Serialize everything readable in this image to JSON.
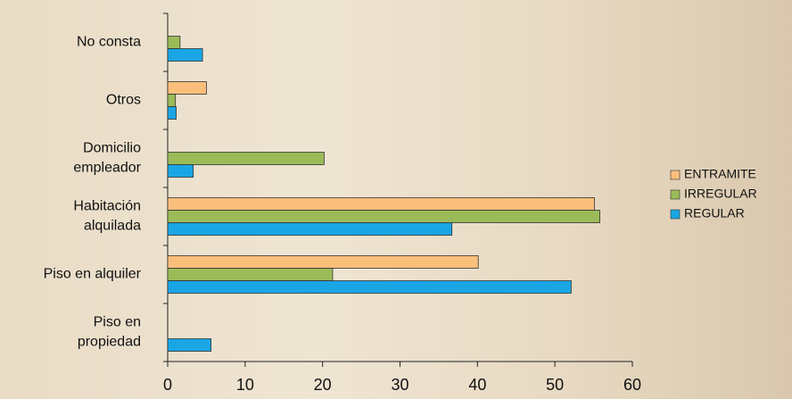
{
  "chart_data": {
    "type": "hbar",
    "categories": [
      [
        "No consta"
      ],
      [
        "Otros"
      ],
      [
        "Domicilio",
        "empleador"
      ],
      [
        "Habitación",
        "alquilada"
      ],
      [
        "Piso en alquiler"
      ],
      [
        "Piso en",
        "propiedad"
      ]
    ],
    "series": [
      {
        "name": "ENTRAMITE",
        "color": "#fbbf7c",
        "values": [
          0,
          5.0,
          0,
          55.1,
          40.1,
          0
        ]
      },
      {
        "name": "IRREGULAR",
        "color": "#9bbb59",
        "values": [
          1.6,
          1.0,
          20.2,
          55.8,
          21.3,
          0
        ]
      },
      {
        "name": "REGULAR",
        "color": "#1aa6e4",
        "values": [
          4.5,
          1.1,
          3.3,
          36.7,
          52.1,
          5.6
        ]
      }
    ],
    "xlim": [
      0,
      60
    ],
    "xticks": [
      0,
      10,
      20,
      30,
      40,
      50,
      60
    ],
    "legend": "right"
  }
}
